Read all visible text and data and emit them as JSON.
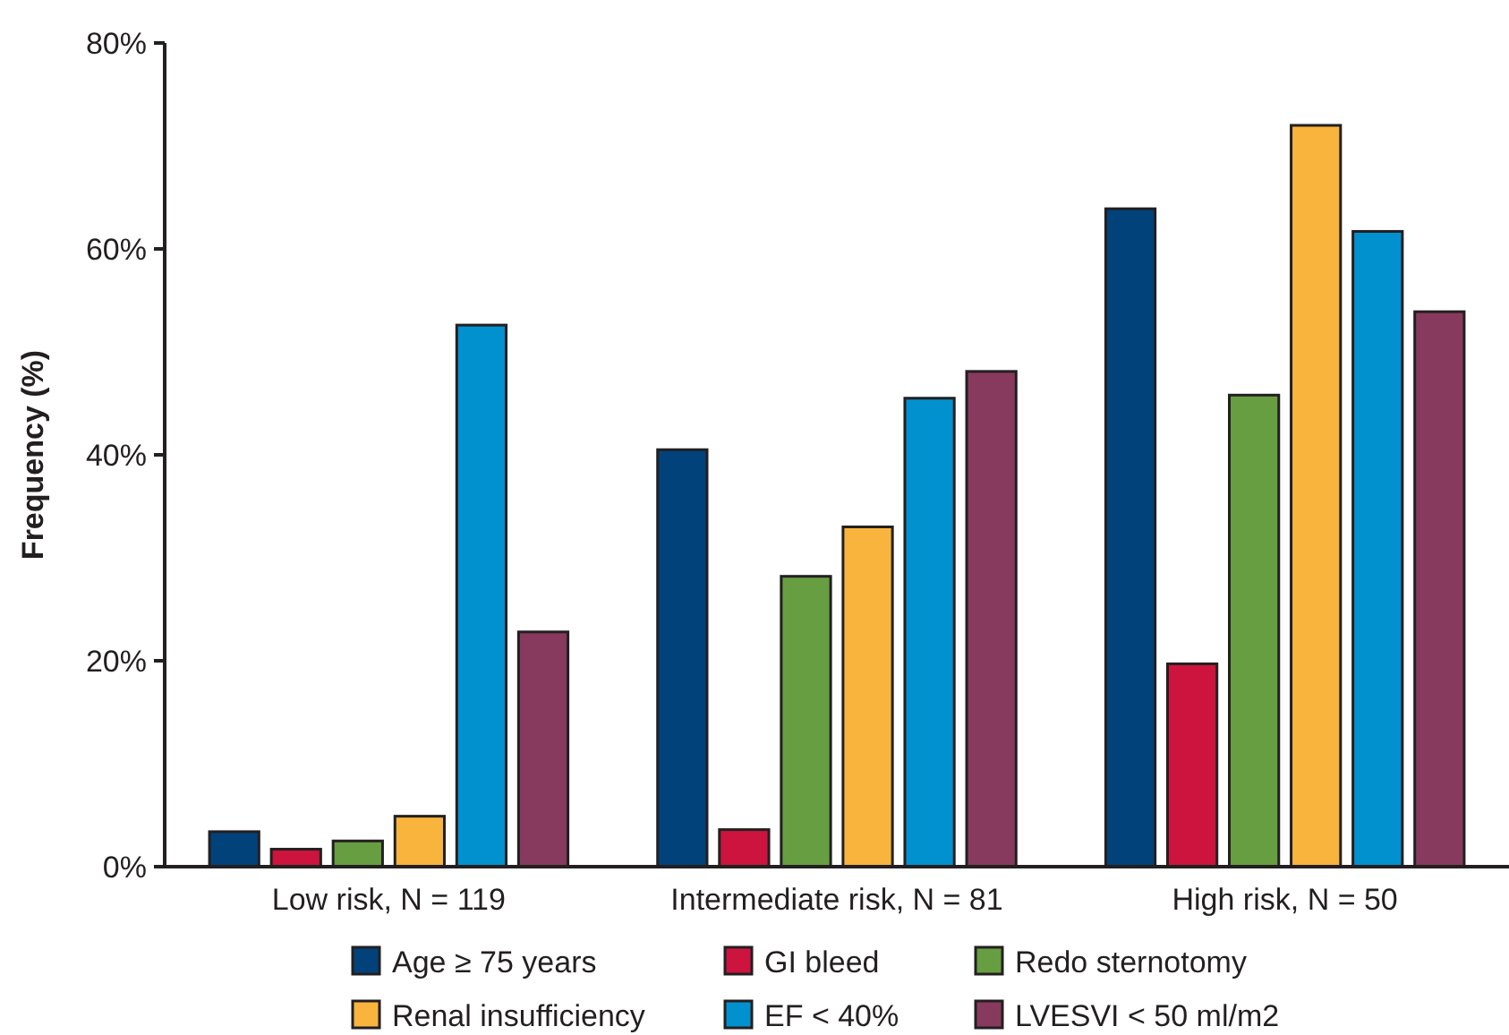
{
  "chart_data": {
    "type": "bar",
    "ylabel": "Frequency (%)",
    "categories": [
      "Low risk, N = 119",
      "Intermediate risk, N = 81",
      "High risk, N = 50"
    ],
    "series": [
      {
        "name": "Age ≥ 75 years",
        "color": "#02427a",
        "values": [
          3.4,
          40.5,
          63.9
        ]
      },
      {
        "name": "GI bleed",
        "color": "#cc143e",
        "values": [
          1.7,
          3.6,
          19.7
        ]
      },
      {
        "name": "Redo sternotomy",
        "color": "#679e41",
        "values": [
          2.5,
          28.2,
          45.8
        ]
      },
      {
        "name": "Renal insufficiency",
        "color": "#f8b43c",
        "values": [
          4.9,
          33.0,
          72.0
        ]
      },
      {
        "name": "EF < 40%",
        "color": "#0291cf",
        "values": [
          52.6,
          45.5,
          61.7
        ]
      },
      {
        "name": "LVESVI < 50 ml/m2",
        "color": "#873a5d",
        "values": [
          22.8,
          48.1,
          53.9
        ]
      }
    ],
    "ylim": [
      0,
      80
    ],
    "yticks": [
      {
        "value": 0,
        "label": "0%"
      },
      {
        "value": 20,
        "label": "20%"
      },
      {
        "value": 40,
        "label": "40%"
      },
      {
        "value": 60,
        "label": "60%"
      },
      {
        "value": 80,
        "label": "80%"
      }
    ],
    "grid": false,
    "legend": "bottom"
  }
}
